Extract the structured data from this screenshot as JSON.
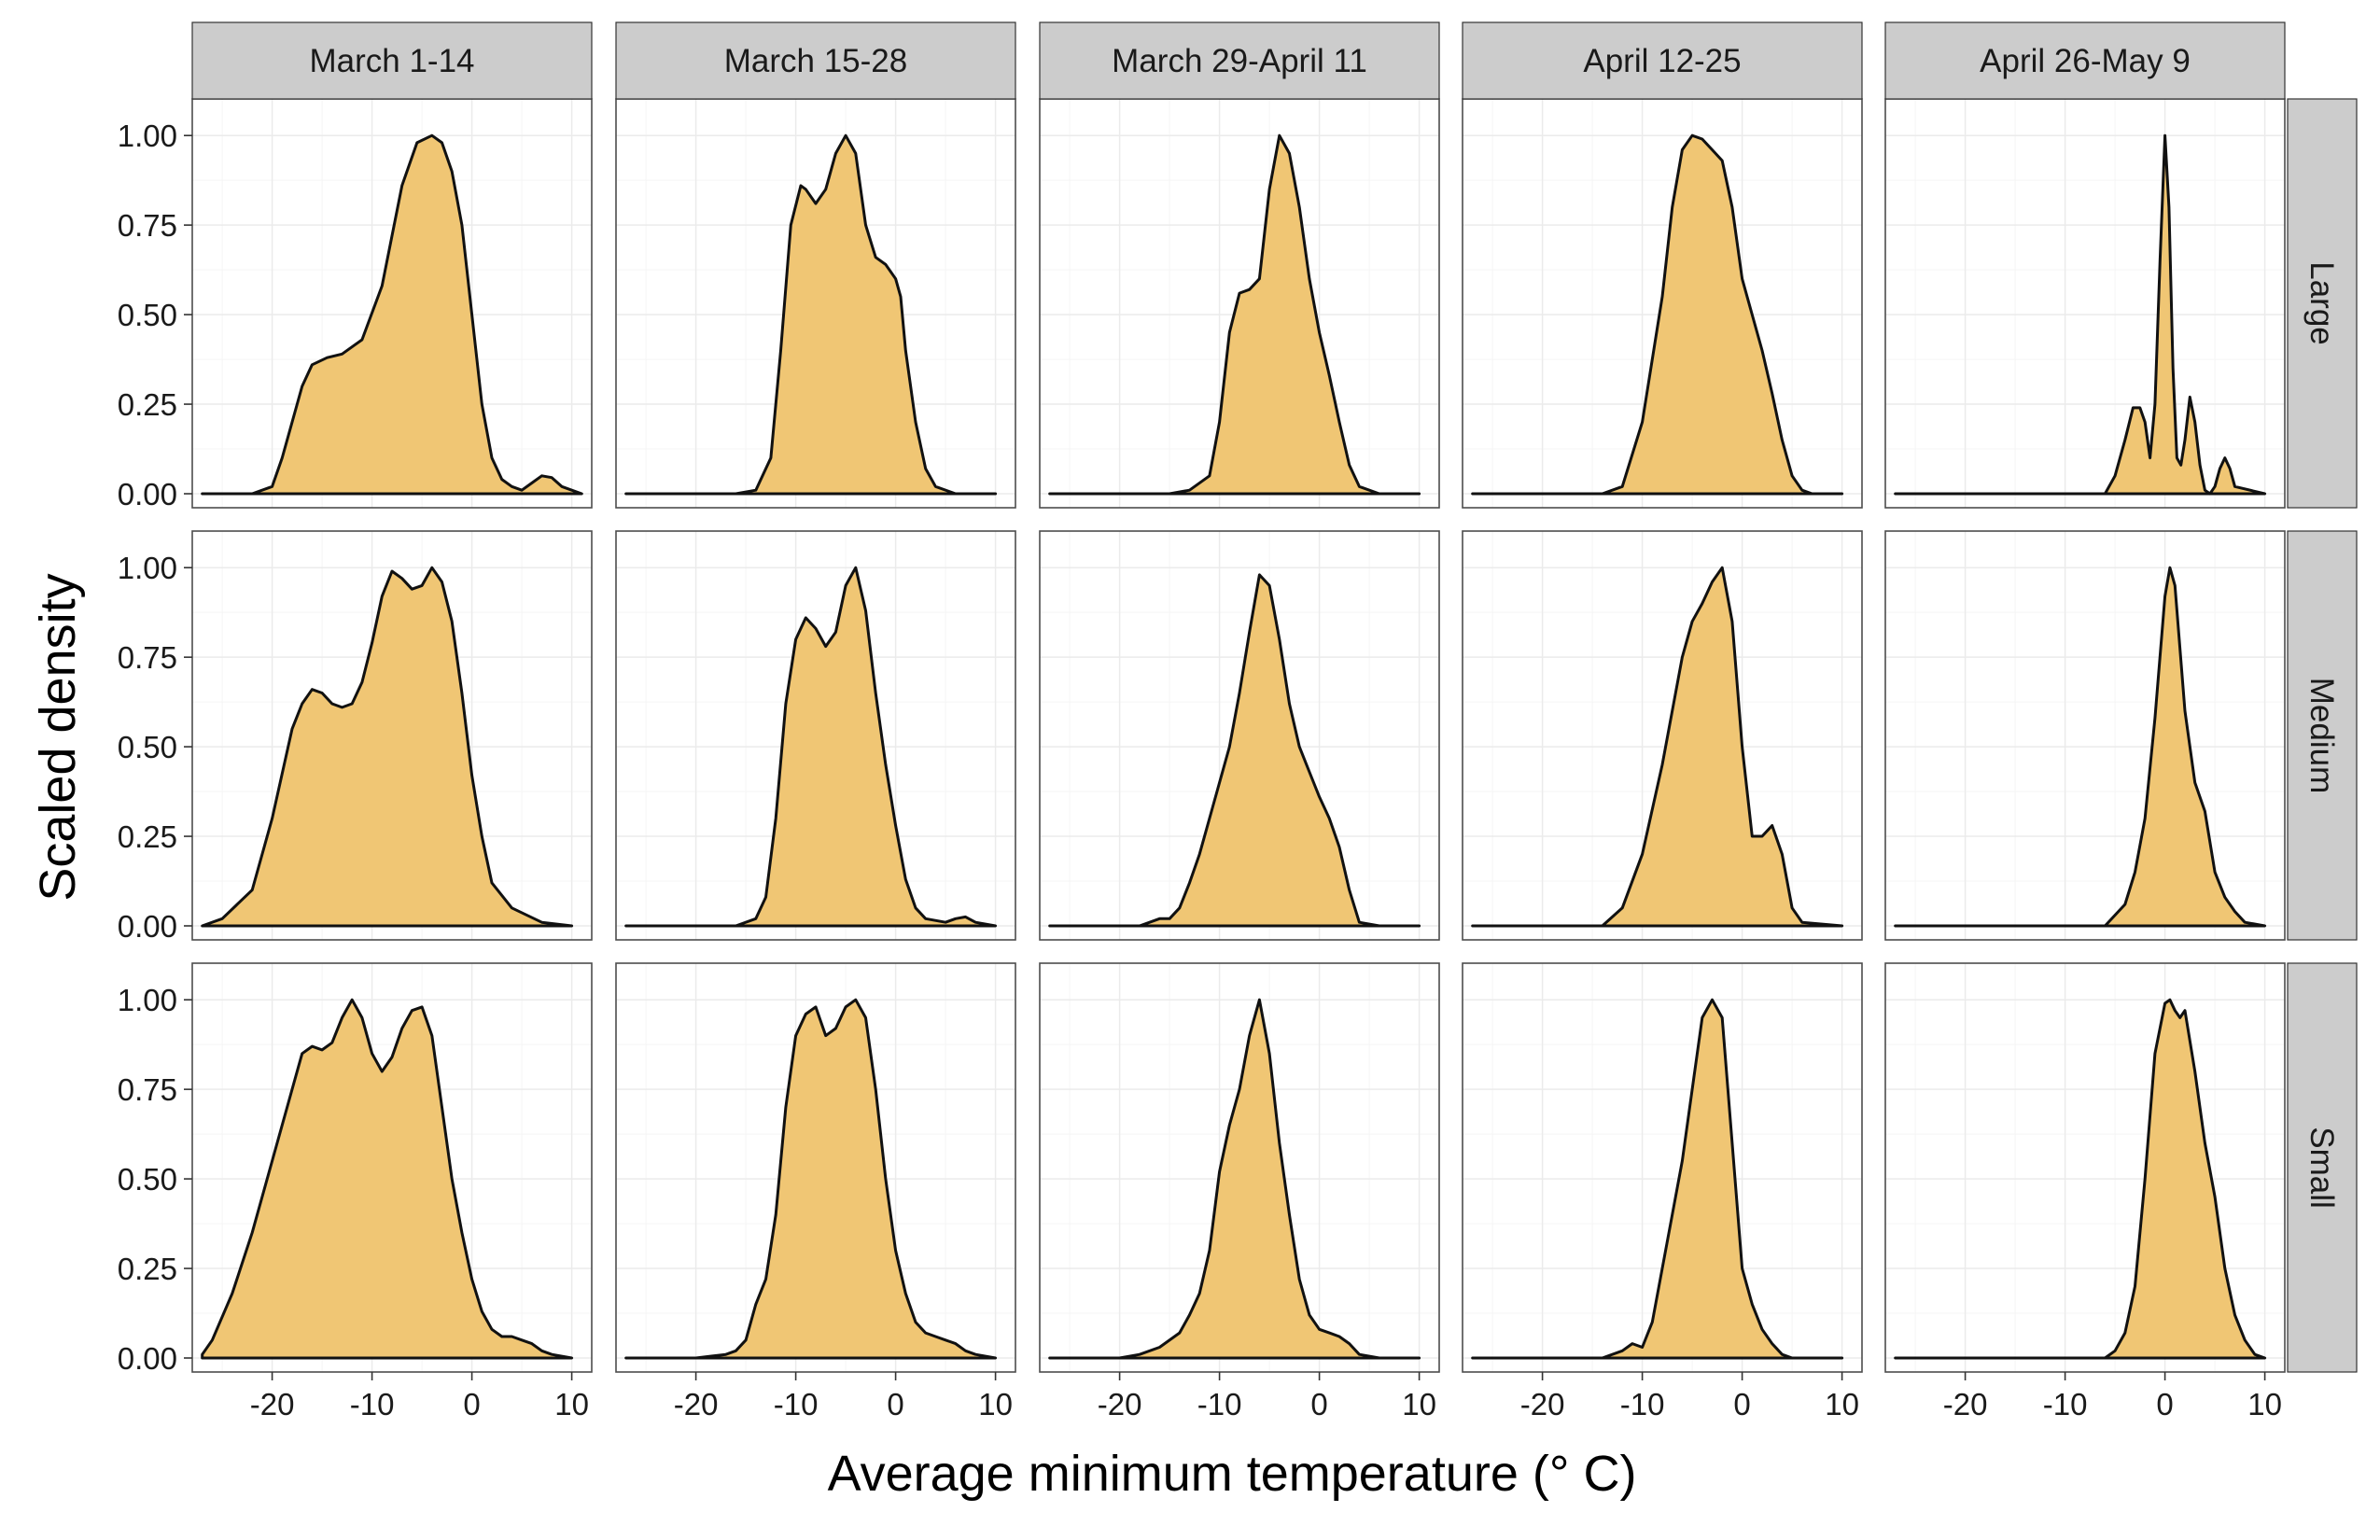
{
  "chart_data": {
    "type": "area",
    "facets": {
      "columns": [
        "March 1-14",
        "March 15-28",
        "March 29-April 11",
        "April 12-25",
        "April 26-May 9"
      ],
      "rows": [
        "Large",
        "Medium",
        "Small"
      ]
    },
    "xlabel": "Average minimum temperature (° C)",
    "ylabel": "Scaled density",
    "xlim": [
      -28,
      12
    ],
    "ylim": [
      0,
      1.05
    ],
    "x_ticks": [
      "-20",
      "-10",
      "0",
      "10"
    ],
    "y_ticks": [
      "0.00",
      "0.25",
      "0.50",
      "0.75",
      "1.00"
    ],
    "grid": true,
    "fill_color": "#F0C674",
    "line_color": "#111111",
    "series": [
      {
        "column": "March 1-14",
        "row": "Large",
        "x": [
          -27,
          -22,
          -20,
          -19,
          -17,
          -16,
          -14.5,
          -13,
          -11,
          -9,
          -7,
          -5.5,
          -4,
          -3,
          -2,
          -1,
          0,
          1,
          2,
          3,
          4,
          5,
          6,
          7,
          8,
          9,
          10,
          11
        ],
        "y": [
          0,
          0,
          0.02,
          0.1,
          0.3,
          0.36,
          0.38,
          0.39,
          0.43,
          0.58,
          0.86,
          0.98,
          1.0,
          0.98,
          0.9,
          0.75,
          0.5,
          0.25,
          0.1,
          0.04,
          0.02,
          0.01,
          0.03,
          0.05,
          0.045,
          0.02,
          0.01,
          0.0
        ]
      },
      {
        "column": "March 15-28",
        "row": "Large",
        "x": [
          -27,
          -16,
          -14,
          -12.5,
          -11.5,
          -10.5,
          -9.5,
          -9,
          -8,
          -7,
          -6,
          -5,
          -4,
          -3,
          -2,
          -1,
          0,
          0.5,
          1,
          2,
          3,
          4,
          6,
          10
        ],
        "y": [
          0,
          0,
          0.01,
          0.1,
          0.4,
          0.75,
          0.86,
          0.85,
          0.81,
          0.85,
          0.95,
          1.0,
          0.95,
          0.75,
          0.66,
          0.64,
          0.6,
          0.55,
          0.4,
          0.2,
          0.07,
          0.02,
          0,
          0
        ]
      },
      {
        "column": "March 29-April 11",
        "row": "Large",
        "x": [
          -27,
          -15,
          -13,
          -11,
          -10,
          -9,
          -8,
          -7,
          -6,
          -5,
          -4,
          -3,
          -2,
          -1,
          0,
          1,
          2,
          3,
          4,
          6,
          10
        ],
        "y": [
          0,
          0,
          0.01,
          0.05,
          0.2,
          0.45,
          0.56,
          0.57,
          0.6,
          0.85,
          1.0,
          0.95,
          0.8,
          0.6,
          0.45,
          0.33,
          0.2,
          0.08,
          0.02,
          0,
          0
        ]
      },
      {
        "column": "April 12-25",
        "row": "Large",
        "x": [
          -27,
          -14,
          -12,
          -10,
          -8,
          -7,
          -6,
          -5,
          -4,
          -3,
          -2,
          -1,
          0,
          1,
          2,
          3,
          4,
          5,
          6,
          7,
          10
        ],
        "y": [
          0,
          0,
          0.02,
          0.2,
          0.55,
          0.8,
          0.96,
          1.0,
          0.99,
          0.96,
          0.93,
          0.8,
          0.6,
          0.5,
          0.4,
          0.28,
          0.15,
          0.05,
          0.01,
          0,
          0
        ]
      },
      {
        "column": "April 26-May 9",
        "row": "Large",
        "x": [
          -27,
          -6,
          -5,
          -4,
          -3.2,
          -2.5,
          -2,
          -1.5,
          -1,
          -0.5,
          0,
          0.4,
          0.8,
          1.2,
          1.6,
          2,
          2.5,
          3,
          3.5,
          4,
          4.5,
          5,
          5.5,
          6,
          6.5,
          7,
          10
        ],
        "y": [
          0,
          0,
          0.05,
          0.15,
          0.24,
          0.24,
          0.2,
          0.1,
          0.25,
          0.65,
          1.0,
          0.8,
          0.35,
          0.1,
          0.08,
          0.15,
          0.27,
          0.2,
          0.08,
          0.01,
          0,
          0.02,
          0.07,
          0.1,
          0.07,
          0.02,
          0
        ]
      },
      {
        "column": "March 1-14",
        "row": "Medium",
        "x": [
          -27,
          -25,
          -22,
          -20,
          -18,
          -17,
          -16,
          -15,
          -14,
          -13,
          -12,
          -11,
          -10,
          -9,
          -8,
          -7,
          -6,
          -5,
          -4,
          -3,
          -2,
          -1,
          0,
          1,
          2,
          4,
          7,
          10
        ],
        "y": [
          0,
          0.02,
          0.1,
          0.3,
          0.55,
          0.62,
          0.66,
          0.65,
          0.62,
          0.61,
          0.62,
          0.68,
          0.79,
          0.92,
          0.99,
          0.97,
          0.94,
          0.95,
          1.0,
          0.96,
          0.85,
          0.65,
          0.42,
          0.25,
          0.12,
          0.05,
          0.01,
          0
        ]
      },
      {
        "column": "March 15-28",
        "row": "Medium",
        "x": [
          -27,
          -16,
          -14,
          -13,
          -12,
          -11,
          -10,
          -9,
          -8,
          -7,
          -6,
          -5,
          -4,
          -3,
          -2,
          -1,
          0,
          1,
          2,
          3,
          5,
          6,
          7,
          8,
          10
        ],
        "y": [
          0,
          0,
          0.02,
          0.08,
          0.3,
          0.62,
          0.8,
          0.86,
          0.83,
          0.78,
          0.82,
          0.95,
          1.0,
          0.88,
          0.65,
          0.45,
          0.28,
          0.13,
          0.05,
          0.02,
          0.01,
          0.02,
          0.025,
          0.01,
          0
        ]
      },
      {
        "column": "March 29-April 11",
        "row": "Medium",
        "x": [
          -27,
          -18,
          -17,
          -16,
          -15,
          -14,
          -13,
          -12,
          -11,
          -10,
          -9,
          -8,
          -7,
          -6,
          -5,
          -4,
          -3,
          -2,
          -1,
          0,
          1,
          2,
          3,
          4,
          6,
          10
        ],
        "y": [
          0,
          0,
          0.01,
          0.02,
          0.02,
          0.05,
          0.12,
          0.2,
          0.3,
          0.4,
          0.5,
          0.65,
          0.82,
          0.98,
          0.95,
          0.8,
          0.62,
          0.5,
          0.43,
          0.36,
          0.3,
          0.22,
          0.1,
          0.01,
          0,
          0
        ]
      },
      {
        "column": "April 12-25",
        "row": "Medium",
        "x": [
          -27,
          -14,
          -12,
          -10,
          -8,
          -6,
          -5,
          -4,
          -3,
          -2,
          -1,
          0,
          1,
          2,
          3,
          4,
          5,
          6,
          10
        ],
        "y": [
          0,
          0,
          0.05,
          0.2,
          0.45,
          0.75,
          0.85,
          0.9,
          0.96,
          1.0,
          0.85,
          0.5,
          0.25,
          0.25,
          0.28,
          0.2,
          0.05,
          0.01,
          0
        ]
      },
      {
        "column": "April 26-May 9",
        "row": "Medium",
        "x": [
          -27,
          -6,
          -4,
          -3,
          -2,
          -1,
          0,
          0.5,
          1,
          2,
          3,
          4,
          5,
          6,
          7,
          8,
          10
        ],
        "y": [
          0,
          0,
          0.06,
          0.15,
          0.3,
          0.58,
          0.92,
          1.0,
          0.95,
          0.6,
          0.4,
          0.32,
          0.15,
          0.08,
          0.04,
          0.01,
          0
        ]
      },
      {
        "column": "March 1-14",
        "row": "Small",
        "x": [
          -27,
          -26,
          -24,
          -22,
          -20,
          -18,
          -17,
          -16,
          -15,
          -14,
          -13,
          -12,
          -11,
          -10,
          -9,
          -8,
          -7,
          -6,
          -5,
          -4,
          -3,
          -2,
          -1,
          0,
          1,
          2,
          3,
          4,
          5,
          6,
          7,
          8,
          10
        ],
        "y": [
          0.01,
          0.05,
          0.18,
          0.35,
          0.55,
          0.75,
          0.85,
          0.87,
          0.86,
          0.88,
          0.95,
          1.0,
          0.95,
          0.85,
          0.8,
          0.84,
          0.92,
          0.97,
          0.98,
          0.9,
          0.7,
          0.5,
          0.35,
          0.22,
          0.13,
          0.08,
          0.06,
          0.06,
          0.05,
          0.04,
          0.02,
          0.01,
          0
        ]
      },
      {
        "column": "March 15-28",
        "row": "Small",
        "x": [
          -27,
          -20,
          -17,
          -16,
          -15,
          -14,
          -13,
          -12,
          -11,
          -10,
          -9,
          -8,
          -7,
          -6,
          -5,
          -4,
          -3,
          -2,
          -1,
          0,
          1,
          2,
          3,
          4,
          5,
          6,
          7,
          8,
          10
        ],
        "y": [
          0,
          0,
          0.01,
          0.02,
          0.05,
          0.15,
          0.22,
          0.4,
          0.7,
          0.9,
          0.96,
          0.98,
          0.9,
          0.92,
          0.98,
          1.0,
          0.95,
          0.75,
          0.5,
          0.3,
          0.18,
          0.1,
          0.07,
          0.06,
          0.05,
          0.04,
          0.02,
          0.01,
          0
        ]
      },
      {
        "column": "March 29-April 11",
        "row": "Small",
        "x": [
          -27,
          -20,
          -18,
          -16,
          -14,
          -13,
          -12,
          -11,
          -10,
          -9,
          -8,
          -7,
          -6,
          -5,
          -4,
          -3,
          -2,
          -1,
          0,
          1,
          2,
          3,
          4,
          6,
          10
        ],
        "y": [
          0,
          0,
          0.01,
          0.03,
          0.07,
          0.12,
          0.18,
          0.3,
          0.52,
          0.65,
          0.75,
          0.9,
          1.0,
          0.85,
          0.6,
          0.4,
          0.22,
          0.12,
          0.08,
          0.07,
          0.06,
          0.04,
          0.01,
          0,
          0
        ]
      },
      {
        "column": "April 12-25",
        "row": "Small",
        "x": [
          -27,
          -14,
          -12,
          -11,
          -10,
          -9,
          -8,
          -7,
          -6,
          -5,
          -4,
          -3,
          -2,
          -1,
          0,
          1,
          2,
          3,
          4,
          5,
          6,
          10
        ],
        "y": [
          0,
          0,
          0.02,
          0.04,
          0.03,
          0.1,
          0.25,
          0.4,
          0.55,
          0.75,
          0.95,
          1.0,
          0.95,
          0.6,
          0.25,
          0.15,
          0.08,
          0.04,
          0.01,
          0,
          0,
          0
        ]
      },
      {
        "column": "April 26-May 9",
        "row": "Small",
        "x": [
          -27,
          -6,
          -5,
          -4,
          -3,
          -2,
          -1,
          0,
          0.5,
          1,
          1.5,
          2,
          3,
          4,
          5,
          6,
          7,
          8,
          9,
          10
        ],
        "y": [
          0,
          0,
          0.02,
          0.07,
          0.2,
          0.5,
          0.85,
          0.99,
          1.0,
          0.97,
          0.95,
          0.97,
          0.8,
          0.6,
          0.45,
          0.25,
          0.12,
          0.05,
          0.01,
          0
        ]
      }
    ]
  }
}
